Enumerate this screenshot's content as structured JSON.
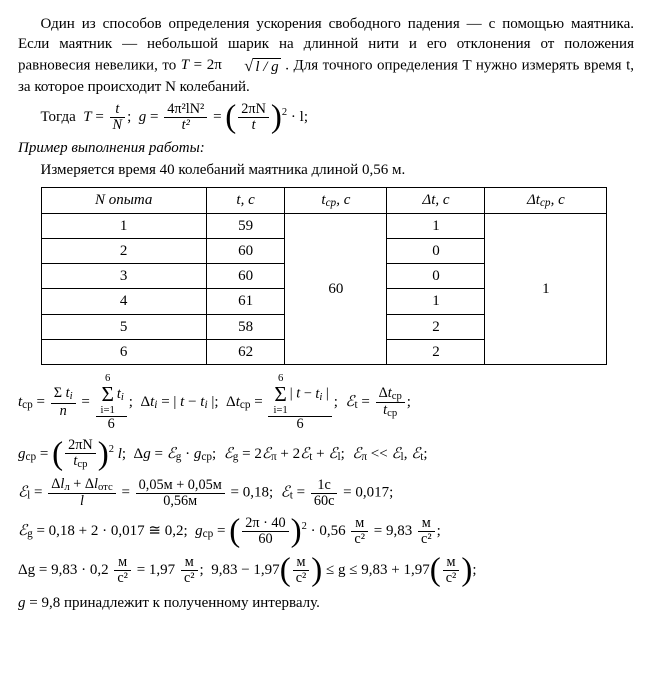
{
  "paragraph": {
    "text_before_f": "Один из способов определения ускорения свободного падения — с помощью маятника. Если маятник — небольшой шарик на длинной нити и его отклонения от положения равновесия невелики, то ",
    "formula_T": "T = 2π",
    "formula_sqrt": "l / g",
    "text_after_f": ". Для точного определения T нужно измерять время t, за которое происходит N колебаний."
  },
  "then": {
    "lead": "Тогда",
    "f1_num": "t",
    "f1_den": "N",
    "f2_num": "4π²lN²",
    "f2_den": "t²",
    "f3_num": "2πN",
    "f3_den": "t",
    "tail": "· l;"
  },
  "example": {
    "title": "Пример выполнения работы:",
    "desc": "Измеряется время 40 колебаний маятника длиной 0,56 м."
  },
  "table": {
    "headers": [
      "N опыта",
      "t, c",
      "t_ср, c",
      "Δt, c",
      "Δt_ср, c"
    ],
    "rows": [
      [
        "1",
        "59",
        "60",
        "1",
        "1"
      ],
      [
        "2",
        "60",
        "",
        "0",
        ""
      ],
      [
        "3",
        "60",
        "",
        "0",
        ""
      ],
      [
        "4",
        "61",
        "",
        "1",
        ""
      ],
      [
        "5",
        "58",
        "",
        "2",
        ""
      ],
      [
        "6",
        "62",
        "",
        "2",
        ""
      ]
    ],
    "colors": {
      "border": "#000"
    }
  },
  "eq": {
    "l1_a_num": "Σ t_i",
    "l1_a_den": "n",
    "l1_b_top": "6",
    "l1_b_num": "t_i",
    "l1_b_bot": "i=1",
    "l1_b_den": "6",
    "l1_dabs": "Δt_i = | t − t_i |;",
    "l1_c_top": "6",
    "l1_c_num": "| t − t_i |",
    "l1_c_bot": "i=1",
    "l1_c_den": "6",
    "l1_e_num": "Δt_ср",
    "l1_e_den": "t_ср",
    "l2_g_num": "2πN",
    "l2_g_den": "t_ср",
    "l2_text": "Δg = ℰ_g · g_ср;  ℰ_g = 2ℰ_π + 2ℰ_t + ℰ_l;  ℰ_π << ℰ_l, ℰ_t;",
    "l3_num1": "Δl_л + Δl_отс",
    "l3_den1": "l",
    "l3_num2": "0,05м + 0,05м",
    "l3_den2": "0,56м",
    "l3_val": "0,18",
    "l3_num3": "1с",
    "l3_den3": "60с",
    "l3_val2": "0,017",
    "l4_a": "ℰ_g = 0,18 + 2 · 0,017 ≅ 0,2;",
    "l4_gnum": "2π · 40",
    "l4_gden": "60",
    "l4_gfac": "· 0,56",
    "l4_unit_num": "м",
    "l4_unit_den": "с²",
    "l4_res": "= 9,83",
    "l5_a": "Δg = 9,83 · 0,2",
    "l5_a_val": "= 1,97",
    "l5_b": "9,83 − 1,97",
    "l5_c": "≤ g ≤ 9,83 + 1,97",
    "l6": "g = 9,8 принадлежит к полученному интервалу."
  }
}
